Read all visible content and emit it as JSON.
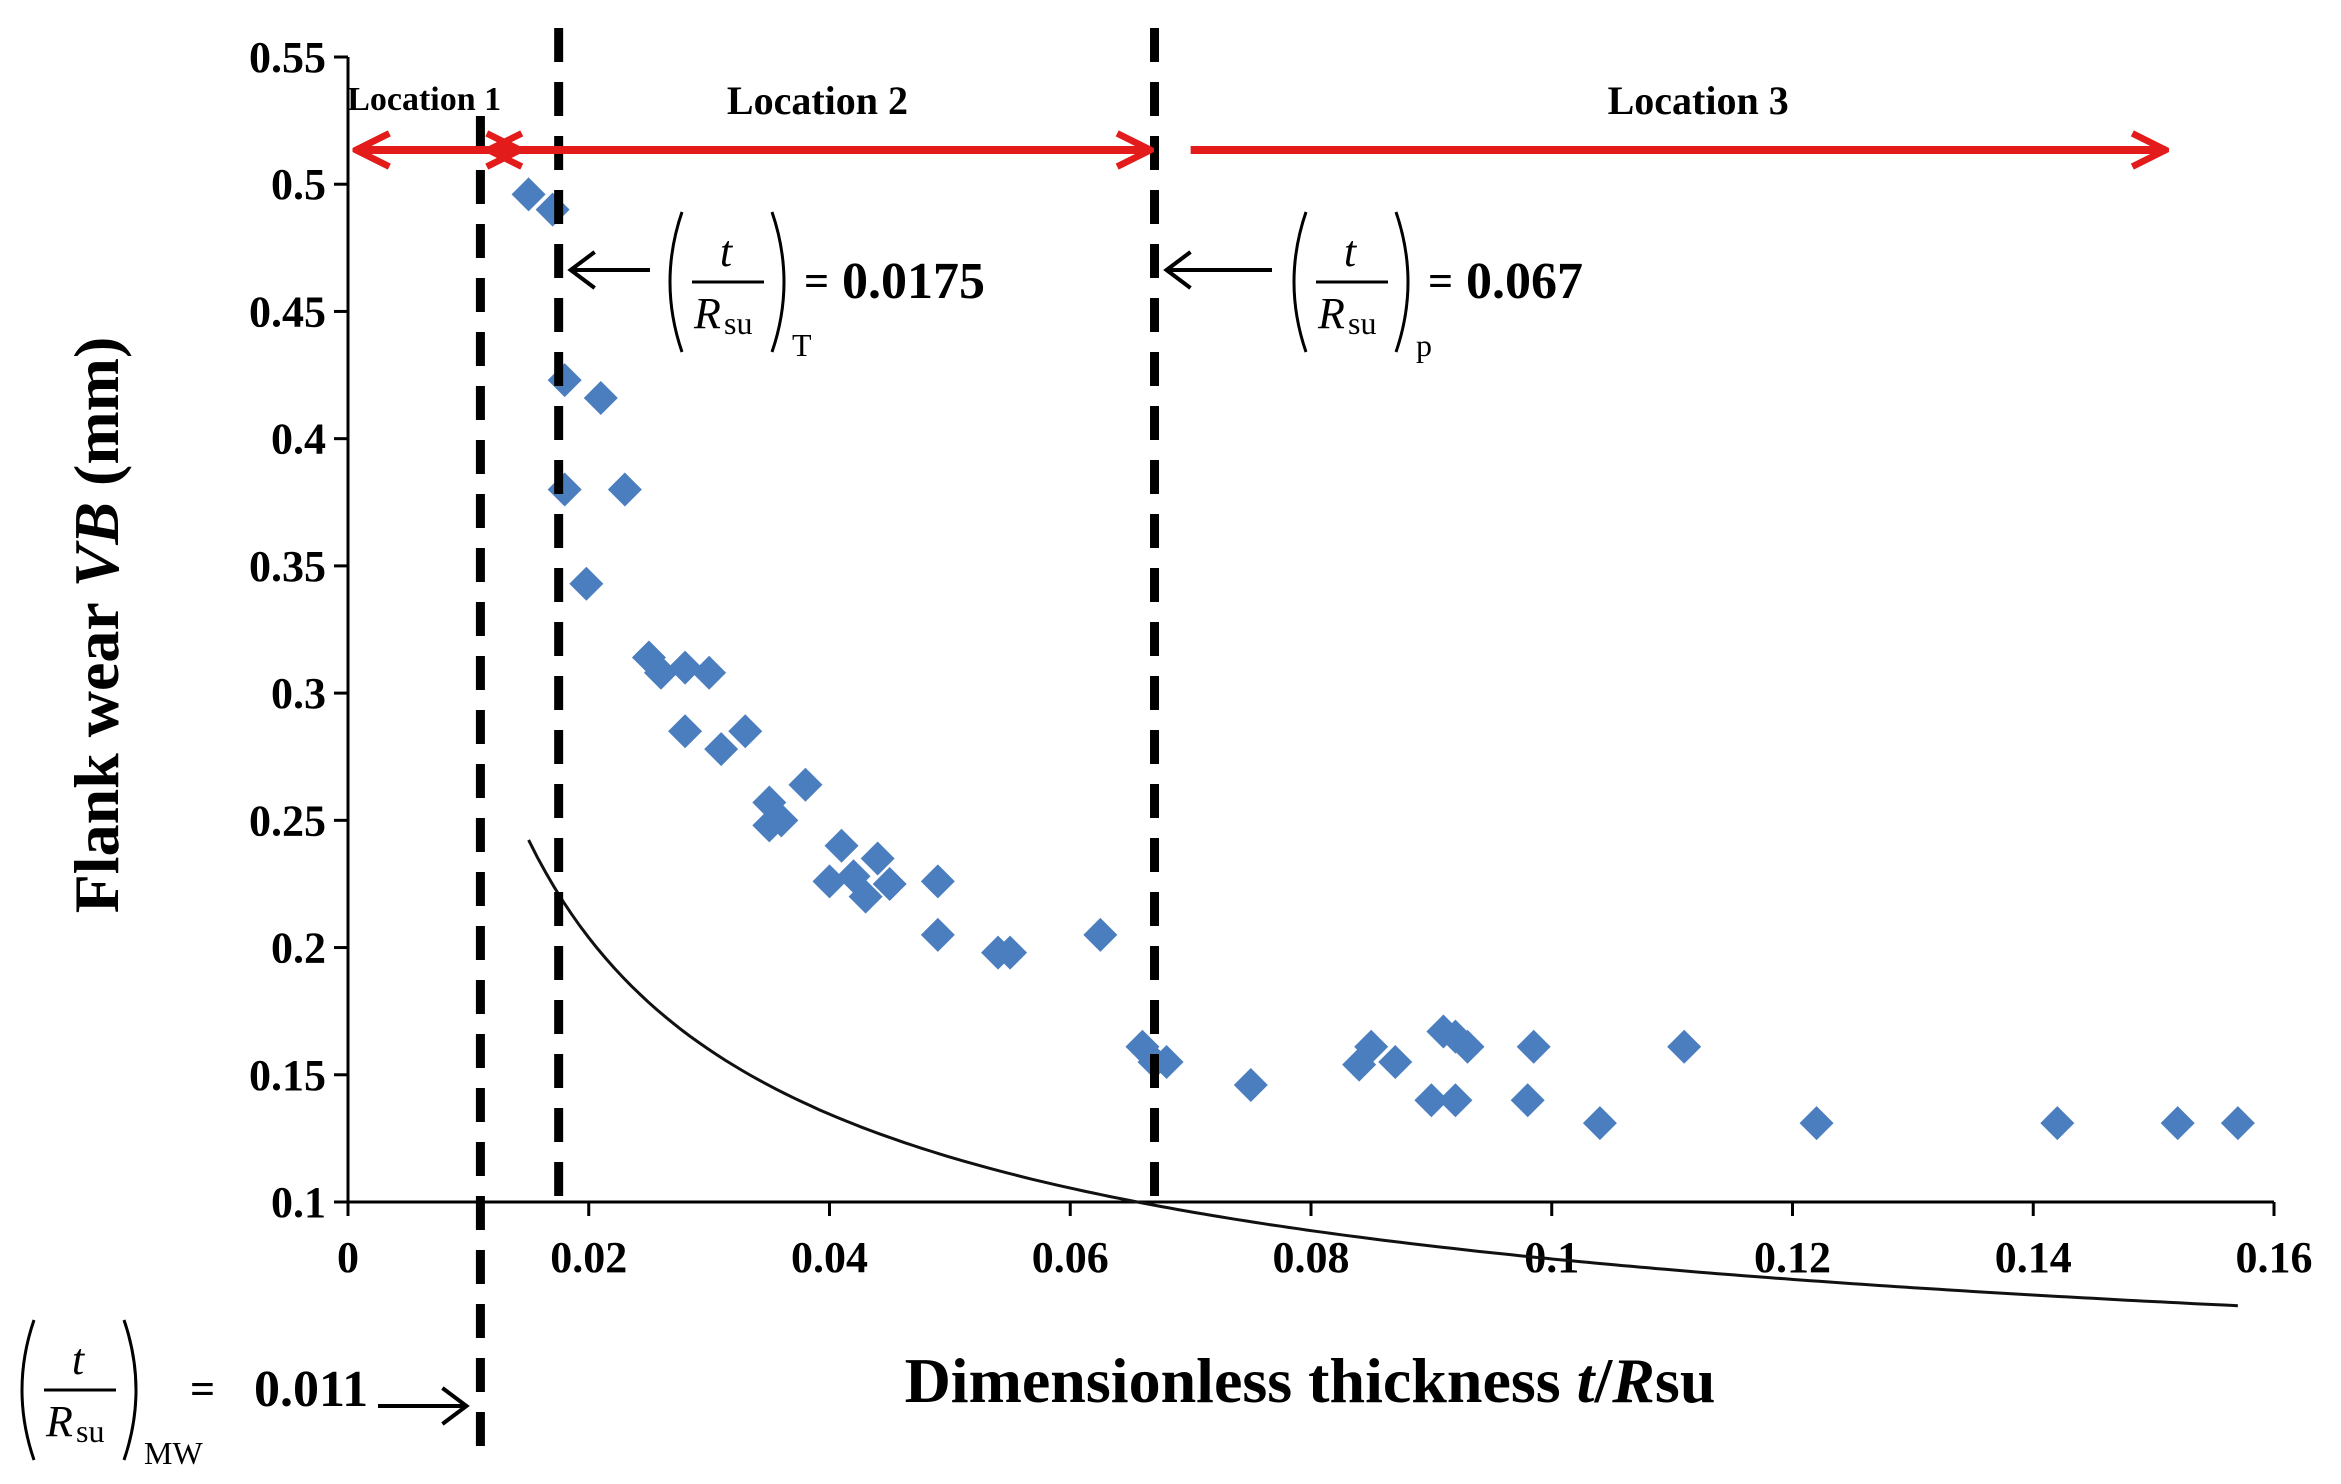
{
  "chart_data": {
    "type": "scatter",
    "xlabel": "Dimensionless thickness t/Rsu",
    "xlabel_parts": {
      "pre": "Dimensionless thickness ",
      "t": "t",
      "slash": "/",
      "R": "R",
      "post": "su"
    },
    "ylabel": "Flank wear VB (mm)",
    "ylabel_parts": {
      "pre": "Flank wear ",
      "vb": "VB",
      "post": " (mm)"
    },
    "xlim": [
      0,
      0.16
    ],
    "ylim": [
      0.1,
      0.55
    ],
    "x_ticks": [
      0,
      0.02,
      0.04,
      0.06,
      0.08,
      0.1,
      0.12,
      0.14,
      0.16
    ],
    "x_tick_labels": [
      "0",
      "0.02",
      "0.04",
      "0.06",
      "0.08",
      "0.1",
      "0.12",
      "0.14",
      "0.16"
    ],
    "y_ticks": [
      0.1,
      0.15,
      0.2,
      0.25,
      0.3,
      0.35,
      0.4,
      0.45,
      0.5,
      0.55
    ],
    "y_tick_labels": [
      "0.1",
      "0.15",
      "0.2",
      "0.25",
      "0.3",
      "0.35",
      "0.4",
      "0.45",
      "0.5",
      "0.55"
    ],
    "marker_color": "#4a7ebf",
    "series": [
      {
        "name": "Flank wear",
        "points": [
          [
            0.015,
            0.496
          ],
          [
            0.017,
            0.49
          ],
          [
            0.018,
            0.423
          ],
          [
            0.021,
            0.416
          ],
          [
            0.018,
            0.38
          ],
          [
            0.023,
            0.38
          ],
          [
            0.0198,
            0.343
          ],
          [
            0.025,
            0.314
          ],
          [
            0.026,
            0.308
          ],
          [
            0.028,
            0.31
          ],
          [
            0.03,
            0.308
          ],
          [
            0.028,
            0.285
          ],
          [
            0.031,
            0.278
          ],
          [
            0.033,
            0.285
          ],
          [
            0.035,
            0.257
          ],
          [
            0.035,
            0.248
          ],
          [
            0.036,
            0.25
          ],
          [
            0.038,
            0.264
          ],
          [
            0.04,
            0.226
          ],
          [
            0.041,
            0.24
          ],
          [
            0.042,
            0.228
          ],
          [
            0.043,
            0.22
          ],
          [
            0.044,
            0.235
          ],
          [
            0.045,
            0.225
          ],
          [
            0.049,
            0.226
          ],
          [
            0.049,
            0.205
          ],
          [
            0.054,
            0.198
          ],
          [
            0.055,
            0.198
          ],
          [
            0.0625,
            0.205
          ],
          [
            0.066,
            0.161
          ],
          [
            0.067,
            0.155
          ],
          [
            0.068,
            0.155
          ],
          [
            0.075,
            0.146
          ],
          [
            0.084,
            0.154
          ],
          [
            0.085,
            0.161
          ],
          [
            0.087,
            0.155
          ],
          [
            0.09,
            0.14
          ],
          [
            0.091,
            0.167
          ],
          [
            0.092,
            0.14
          ],
          [
            0.092,
            0.165
          ],
          [
            0.093,
            0.161
          ],
          [
            0.098,
            0.14
          ],
          [
            0.0985,
            0.161
          ],
          [
            0.104,
            0.131
          ],
          [
            0.111,
            0.161
          ],
          [
            0.122,
            0.131
          ],
          [
            0.142,
            0.131
          ],
          [
            0.152,
            0.131
          ],
          [
            0.157,
            0.131
          ]
        ]
      }
    ],
    "trendline": {
      "type": "power",
      "coefficient": 0.0195,
      "exponent": -0.6,
      "x_range": [
        0.015,
        0.157
      ]
    },
    "thresholds": [
      {
        "x": 0.011,
        "label_value": "0.011",
        "subscript": "MW"
      },
      {
        "x": 0.0175,
        "label_value": "0.0175",
        "subscript": "T"
      },
      {
        "x": 0.067,
        "label_value": "0.067",
        "subscript": "p"
      }
    ],
    "fraction": {
      "numerator": "t",
      "denominator": "R",
      "denominator_sub": "su",
      "equals": "="
    },
    "locations": [
      {
        "label": "Location 1",
        "x_start": 0.0,
        "x_end": 0.011
      },
      {
        "label": "Location 2",
        "x_start": 0.011,
        "x_end": 0.067
      },
      {
        "label": "Location 3",
        "x_start": 0.07,
        "x_end": 0.151
      }
    ],
    "location_arrow_color": "#e31b1b"
  }
}
